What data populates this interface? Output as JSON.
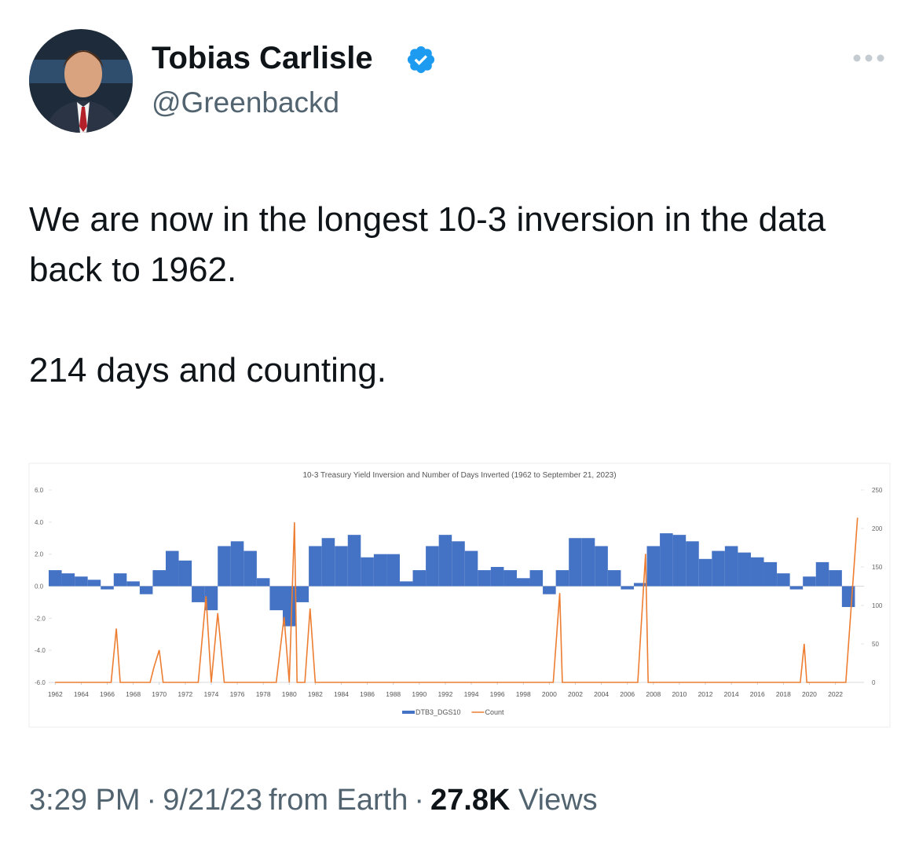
{
  "tweet": {
    "author": {
      "name": "Tobias Carlisle",
      "handle": "@Greenbackd"
    },
    "text": [
      "We are now in the longest 10-3 inversion in the data back to 1962.",
      "214 days and counting."
    ],
    "footer": {
      "time": "3:29 PM",
      "separator": "·",
      "date": "9/21/23",
      "source": "from Earth",
      "views_count": "27.8K",
      "views_label": "Views"
    }
  },
  "chart_data": {
    "type": "bar",
    "title": "10-3 Treasury Yield Inversion and Number of Days Inverted (1962 to September 21, 2023)",
    "x": [
      1962,
      1963,
      1964,
      1965,
      1966,
      1967,
      1968,
      1969,
      1970,
      1971,
      1972,
      1973,
      1974,
      1975,
      1976,
      1977,
      1978,
      1979,
      1980,
      1981,
      1982,
      1983,
      1984,
      1985,
      1986,
      1987,
      1988,
      1989,
      1990,
      1991,
      1992,
      1993,
      1994,
      1995,
      1996,
      1997,
      1998,
      1999,
      2000,
      2001,
      2002,
      2003,
      2004,
      2005,
      2006,
      2007,
      2008,
      2009,
      2010,
      2011,
      2012,
      2013,
      2014,
      2015,
      2016,
      2017,
      2018,
      2019,
      2020,
      2021,
      2022,
      2023
    ],
    "series": [
      {
        "name": "DTB3_DGS10",
        "color": "#4472c4",
        "values": [
          1.0,
          0.8,
          0.6,
          0.4,
          -0.2,
          0.8,
          0.3,
          -0.5,
          1.0,
          2.2,
          1.6,
          -1.0,
          -1.5,
          2.5,
          2.8,
          2.2,
          0.5,
          -1.5,
          -2.5,
          -1.0,
          2.5,
          3.0,
          2.5,
          3.2,
          1.8,
          2.0,
          2.0,
          0.3,
          1.0,
          2.5,
          3.2,
          2.8,
          2.2,
          1.0,
          1.2,
          1.0,
          0.5,
          1.0,
          -0.5,
          1.0,
          3.0,
          3.0,
          2.5,
          1.0,
          -0.2,
          0.2,
          2.5,
          3.3,
          3.2,
          2.8,
          1.7,
          2.2,
          2.5,
          2.1,
          1.8,
          1.5,
          0.8,
          -0.2,
          0.6,
          1.5,
          1.0,
          -1.3
        ]
      },
      {
        "name": "Count",
        "color": "#ed7d31",
        "axis": "y2",
        "x": [
          1962,
          1966.3,
          1966.7,
          1967,
          1969.3,
          1969.6,
          1970,
          1970.3,
          1973,
          1973.6,
          1974,
          1974.5,
          1975,
          1979,
          1979.6,
          1980,
          1980.4,
          1980.6,
          1981.2,
          1981.6,
          1982,
          2000.3,
          2000.8,
          2001,
          2006.8,
          2007.4,
          2007.6,
          2019.3,
          2019.6,
          2019.8,
          2022.8,
          2023.7
        ],
        "values": [
          0,
          0,
          70,
          0,
          0,
          20,
          42,
          0,
          0,
          112,
          0,
          90,
          0,
          0,
          85,
          0,
          208,
          0,
          0,
          96,
          0,
          0,
          116,
          0,
          0,
          167,
          0,
          0,
          50,
          0,
          0,
          214
        ]
      }
    ],
    "xlim": [
      1961.5,
      2024.2
    ],
    "xticks": [
      1962,
      1964,
      1966,
      1968,
      1970,
      1972,
      1974,
      1976,
      1978,
      1980,
      1982,
      1984,
      1986,
      1988,
      1990,
      1992,
      1994,
      1996,
      1998,
      2000,
      2002,
      2004,
      2006,
      2008,
      2010,
      2012,
      2014,
      2016,
      2018,
      2020,
      2022
    ],
    "ylim": [
      -6,
      6
    ],
    "yticks": [
      {
        "value": -6,
        "label": "-6.0"
      },
      {
        "value": -4,
        "label": "-4.0"
      },
      {
        "value": -2,
        "label": "-2.0"
      },
      {
        "value": 0,
        "label": "0.0"
      },
      {
        "value": 2,
        "label": "2.0"
      },
      {
        "value": 4,
        "label": "4.0"
      },
      {
        "value": 6,
        "label": "6.0"
      }
    ],
    "y2lim": [
      0,
      250
    ],
    "y2ticks": [
      0,
      50,
      100,
      150,
      200,
      250
    ],
    "legend": "bottom"
  }
}
